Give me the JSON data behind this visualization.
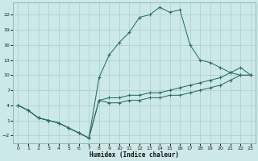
{
  "xlabel": "Humidex (Indice chaleur)",
  "bg_color": "#cde8e8",
  "grid_color": "#aacece",
  "line_color": "#2a7060",
  "xlim": [
    -0.5,
    23.5
  ],
  "ylim": [
    -3.5,
    24.5
  ],
  "xticks": [
    0,
    1,
    2,
    3,
    4,
    5,
    6,
    7,
    8,
    9,
    10,
    11,
    12,
    13,
    14,
    15,
    16,
    17,
    18,
    19,
    20,
    21,
    22,
    23
  ],
  "yticks": [
    -2,
    1,
    4,
    7,
    10,
    13,
    16,
    19,
    22
  ],
  "shared_x": [
    0,
    1,
    2,
    3,
    4,
    5,
    6,
    7
  ],
  "shared_y": [
    4,
    3,
    1.5,
    1,
    0.5,
    -0.5,
    -1.5,
    -2.5
  ],
  "line1_x": [
    7,
    8,
    9,
    10,
    11,
    12,
    13,
    14,
    15,
    16,
    17,
    18,
    19,
    20,
    21,
    22,
    23
  ],
  "line1_y": [
    -2.5,
    9.5,
    14,
    16.5,
    18.5,
    21.5,
    22,
    23.5,
    22.5,
    23,
    16,
    13,
    12.5,
    11.5,
    10.5,
    10,
    10
  ],
  "line2_x": [
    7,
    8,
    9,
    10,
    11,
    12,
    13,
    14,
    15,
    16,
    17,
    18,
    19,
    20,
    21,
    22,
    23
  ],
  "line2_y": [
    -2.5,
    5,
    5.5,
    5.5,
    6,
    6,
    6.5,
    6.5,
    7,
    7.5,
    8,
    8.5,
    9,
    9.5,
    10.5,
    11.5,
    10
  ],
  "line3_x": [
    7,
    8,
    9,
    10,
    11,
    12,
    13,
    14,
    15,
    16,
    17,
    18,
    19,
    20,
    21,
    22,
    23
  ],
  "line3_y": [
    -2.5,
    5,
    4.5,
    4.5,
    5,
    5,
    5.5,
    5.5,
    6,
    6,
    6.5,
    7,
    7.5,
    8,
    9,
    10,
    10
  ]
}
